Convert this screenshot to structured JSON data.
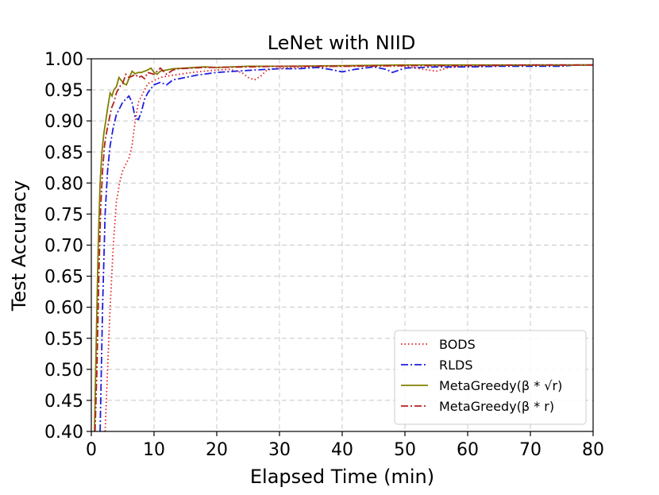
{
  "chart_data": {
    "type": "line",
    "title": "LeNet with NIID",
    "xlabel": "Elapsed Time (min)",
    "ylabel": "Test Accuracy",
    "xlim": [
      0,
      80
    ],
    "ylim": [
      0.4,
      1.0
    ],
    "xticks": [
      0,
      10,
      20,
      30,
      40,
      50,
      60,
      70,
      80
    ],
    "yticks": [
      0.4,
      0.45,
      0.5,
      0.55,
      0.6,
      0.65,
      0.7,
      0.75,
      0.8,
      0.85,
      0.9,
      0.95,
      1.0
    ],
    "grid": true,
    "legend_position": "lower-right",
    "series": [
      {
        "name": "BODS",
        "color": "#e41a1c",
        "style": "dotted",
        "x": [
          2.2,
          2.6,
          3.0,
          3.5,
          4.0,
          4.5,
          5.0,
          5.5,
          6.0,
          6.5,
          7.0,
          7.5,
          8.0,
          8.5,
          9.0,
          10.0,
          11.0,
          12.0,
          14.0,
          16.0,
          18.0,
          20.0,
          22.0,
          24.0,
          25.0,
          26.0,
          27.0,
          28.0,
          30.0,
          33.0,
          36.0,
          40.0,
          45.0,
          50.0,
          53.0,
          55.0,
          57.0,
          60.0,
          65.0,
          70.0,
          75.0,
          80.0
        ],
        "values": [
          0.4,
          0.5,
          0.6,
          0.7,
          0.77,
          0.8,
          0.82,
          0.83,
          0.84,
          0.86,
          0.9,
          0.93,
          0.94,
          0.95,
          0.96,
          0.965,
          0.97,
          0.972,
          0.975,
          0.978,
          0.98,
          0.982,
          0.983,
          0.978,
          0.97,
          0.966,
          0.972,
          0.982,
          0.985,
          0.986,
          0.987,
          0.988,
          0.988,
          0.988,
          0.983,
          0.98,
          0.986,
          0.988,
          0.989,
          0.99,
          0.99,
          0.99
        ]
      },
      {
        "name": "RLDS",
        "color": "#1f1fdd",
        "style": "dashdot",
        "x": [
          1.4,
          1.8,
          2.2,
          2.6,
          3.0,
          3.5,
          4.0,
          4.5,
          5.0,
          5.5,
          6.0,
          6.5,
          7.0,
          7.5,
          8.0,
          8.5,
          9.0,
          9.5,
          10.0,
          11.0,
          12.0,
          13.0,
          15.0,
          17.0,
          20.0,
          23.0,
          26.0,
          30.0,
          33.0,
          36.0,
          38.0,
          40.0,
          42.0,
          45.0,
          47.0,
          48.0,
          50.0,
          55.0,
          60.0,
          65.0,
          70.0,
          75.0,
          77.0,
          80.0
        ],
        "values": [
          0.4,
          0.6,
          0.75,
          0.82,
          0.86,
          0.89,
          0.91,
          0.92,
          0.93,
          0.935,
          0.94,
          0.93,
          0.905,
          0.902,
          0.915,
          0.935,
          0.945,
          0.952,
          0.958,
          0.962,
          0.958,
          0.966,
          0.97,
          0.974,
          0.978,
          0.98,
          0.982,
          0.984,
          0.984,
          0.986,
          0.983,
          0.979,
          0.983,
          0.987,
          0.983,
          0.978,
          0.985,
          0.987,
          0.987,
          0.988,
          0.988,
          0.988,
          0.99,
          0.99
        ]
      },
      {
        "name": "MetaGreedy(β * √r)",
        "color": "#808000",
        "style": "solid",
        "x": [
          0.5,
          0.8,
          1.1,
          1.4,
          1.7,
          2.0,
          2.3,
          2.6,
          3.0,
          3.3,
          3.6,
          4.0,
          4.4,
          4.8,
          5.2,
          5.6,
          6.0,
          6.5,
          7.0,
          7.5,
          8.0,
          8.5,
          9.0,
          9.5,
          10.0,
          10.5,
          11.0,
          12.0,
          13.0,
          15.0,
          18.0,
          20.0,
          25.0,
          30.0,
          40.0,
          50.0,
          60.0,
          70.0,
          80.0
        ],
        "values": [
          0.4,
          0.55,
          0.7,
          0.8,
          0.85,
          0.88,
          0.9,
          0.92,
          0.945,
          0.94,
          0.95,
          0.955,
          0.97,
          0.965,
          0.96,
          0.958,
          0.968,
          0.98,
          0.976,
          0.978,
          0.978,
          0.98,
          0.982,
          0.985,
          0.978,
          0.975,
          0.98,
          0.982,
          0.984,
          0.985,
          0.987,
          0.986,
          0.988,
          0.988,
          0.989,
          0.99,
          0.99,
          0.99,
          0.99
        ]
      },
      {
        "name": "MetaGreedy(β * r)",
        "color": "#b22222",
        "style": "dashdot",
        "x": [
          0.6,
          0.9,
          1.2,
          1.5,
          1.8,
          2.1,
          2.4,
          2.8,
          3.2,
          3.6,
          4.0,
          4.5,
          5.0,
          5.5,
          6.0,
          6.5,
          7.0,
          7.5,
          8.0,
          8.5,
          9.0,
          10.0,
          11.0,
          12.0,
          13.0,
          14.0,
          16.0,
          18.0,
          20.0,
          25.0,
          30.0,
          40.0,
          50.0,
          60.0,
          70.0,
          80.0
        ],
        "values": [
          0.4,
          0.5,
          0.65,
          0.76,
          0.82,
          0.86,
          0.88,
          0.9,
          0.92,
          0.93,
          0.945,
          0.955,
          0.96,
          0.975,
          0.97,
          0.972,
          0.975,
          0.97,
          0.972,
          0.968,
          0.978,
          0.975,
          0.985,
          0.975,
          0.982,
          0.984,
          0.985,
          0.986,
          0.986,
          0.987,
          0.988,
          0.988,
          0.989,
          0.989,
          0.99,
          0.99
        ]
      }
    ]
  }
}
